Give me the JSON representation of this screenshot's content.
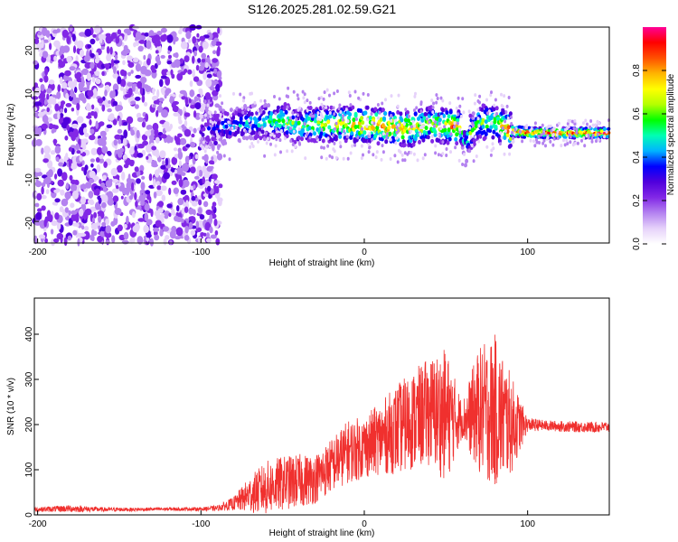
{
  "title": "S126.2025.281.02.59.G21",
  "chart_data": [
    {
      "type": "heatmap",
      "xlabel": "Height of straight line (km)",
      "ylabel": "Frequency (Hz)",
      "xlim": [
        -202,
        150
      ],
      "ylim": [
        -25,
        25
      ],
      "x_ticks": [
        -200,
        -100,
        0,
        100
      ],
      "y_ticks": [
        -20,
        -10,
        0,
        10,
        20
      ],
      "colorbar": {
        "label": "Normalized spectral amplitude",
        "range": [
          0,
          1
        ],
        "ticks": [
          "0.0",
          "0.2",
          "0.4",
          "0.6",
          "0.8"
        ],
        "colormap": [
          "#ffffff",
          "#e6d2fa",
          "#b482f0",
          "#8228e6",
          "#5000dc",
          "#0000ff",
          "#00b4ff",
          "#00ffb4",
          "#00ff00",
          "#b4ff00",
          "#ffff00",
          "#ffb400",
          "#ff5000",
          "#ff0000",
          "#ff0096"
        ]
      },
      "ridge": {
        "x": [
          -100,
          -90,
          -80,
          -70,
          -60,
          -50,
          -40,
          -30,
          -20,
          -10,
          0,
          10,
          20,
          30,
          40,
          50,
          55,
          60,
          62,
          64,
          70,
          80,
          90,
          100,
          110,
          120,
          130,
          140,
          150
        ],
        "y": [
          0.5,
          2,
          2,
          3,
          3,
          3.5,
          2,
          2.5,
          2.5,
          2.5,
          2.5,
          2,
          1.5,
          1.5,
          2.5,
          2,
          2,
          1.5,
          -3,
          0,
          3,
          3,
          1,
          0.5,
          0.5,
          0.5,
          0.5,
          0.5,
          0.5
        ],
        "amplitude": [
          0.3,
          0.4,
          0.45,
          0.5,
          0.55,
          0.6,
          0.6,
          0.65,
          0.75,
          0.8,
          0.85,
          0.85,
          0.8,
          0.75,
          0.7,
          0.75,
          0.9,
          0.6,
          0.5,
          0.6,
          0.6,
          0.65,
          0.95,
          0.95,
          0.95,
          0.95,
          0.95,
          0.95,
          0.95
        ]
      },
      "noise_region": [
        -202,
        -88
      ]
    },
    {
      "type": "line",
      "xlabel": "Height of straight line (km)",
      "ylabel": "SNR (10 * v/v)",
      "xlim": [
        -202,
        150
      ],
      "ylim": [
        0,
        480
      ],
      "x_ticks": [
        -200,
        -100,
        0,
        100
      ],
      "y_ticks": [
        0,
        100,
        200,
        300,
        400
      ],
      "color": "#f0302e",
      "series": [
        {
          "x": [
            -202,
            -180,
            -160,
            -140,
            -120,
            -100,
            -90,
            -80,
            -70,
            -60,
            -50,
            -40,
            -30,
            -20,
            -10,
            0,
            10,
            20,
            30,
            40,
            50,
            60,
            70,
            80,
            90,
            100,
            110,
            120,
            130,
            140,
            150
          ],
          "y": [
            12,
            14,
            12,
            12,
            13,
            13,
            15,
            25,
            45,
            60,
            70,
            75,
            80,
            110,
            140,
            150,
            170,
            190,
            210,
            230,
            220,
            210,
            230,
            230,
            200,
            200,
            198,
            196,
            195,
            194,
            195
          ],
          "spread": [
            5,
            8,
            5,
            4,
            4,
            4,
            6,
            15,
            40,
            60,
            60,
            60,
            55,
            60,
            70,
            70,
            80,
            100,
            110,
            120,
            150,
            40,
            140,
            170,
            110,
            15,
            12,
            12,
            12,
            12,
            12
          ]
        }
      ]
    }
  ]
}
